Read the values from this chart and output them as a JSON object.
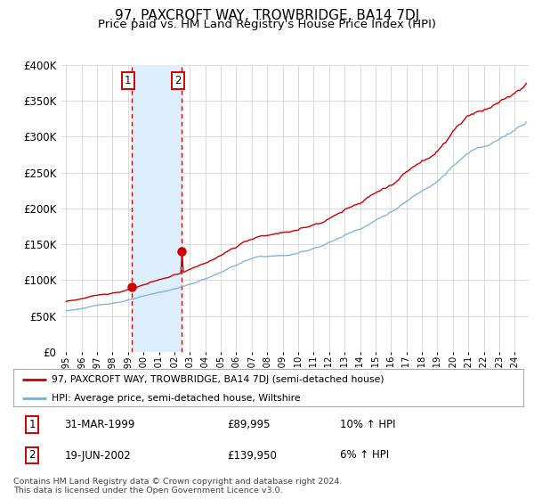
{
  "title": "97, PAXCROFT WAY, TROWBRIDGE, BA14 7DJ",
  "subtitle": "Price paid vs. HM Land Registry's House Price Index (HPI)",
  "legend_line1": "97, PAXCROFT WAY, TROWBRIDGE, BA14 7DJ (semi-detached house)",
  "legend_line2": "HPI: Average price, semi-detached house, Wiltshire",
  "footnote": "Contains HM Land Registry data © Crown copyright and database right 2024.\nThis data is licensed under the Open Government Licence v3.0.",
  "transaction1_label": "1",
  "transaction1_date": "31-MAR-1999",
  "transaction1_price": "£89,995",
  "transaction1_hpi": "10% ↑ HPI",
  "transaction2_label": "2",
  "transaction2_date": "19-JUN-2002",
  "transaction2_price": "£139,950",
  "transaction2_hpi": "6% ↑ HPI",
  "transaction1_x": 1999.25,
  "transaction2_x": 2002.47,
  "transaction1_y": 89995,
  "transaction2_y": 139950,
  "red_color": "#cc0000",
  "blue_color": "#7aadd4",
  "shade_color": "#ddeeff",
  "vline_color": "#cc0000",
  "background_color": "#ffffff",
  "grid_color": "#cccccc",
  "ylim": [
    0,
    400000
  ],
  "xlim_start": 1994.7,
  "xlim_end": 2024.9,
  "title_fontsize": 11,
  "subtitle_fontsize": 9.5
}
